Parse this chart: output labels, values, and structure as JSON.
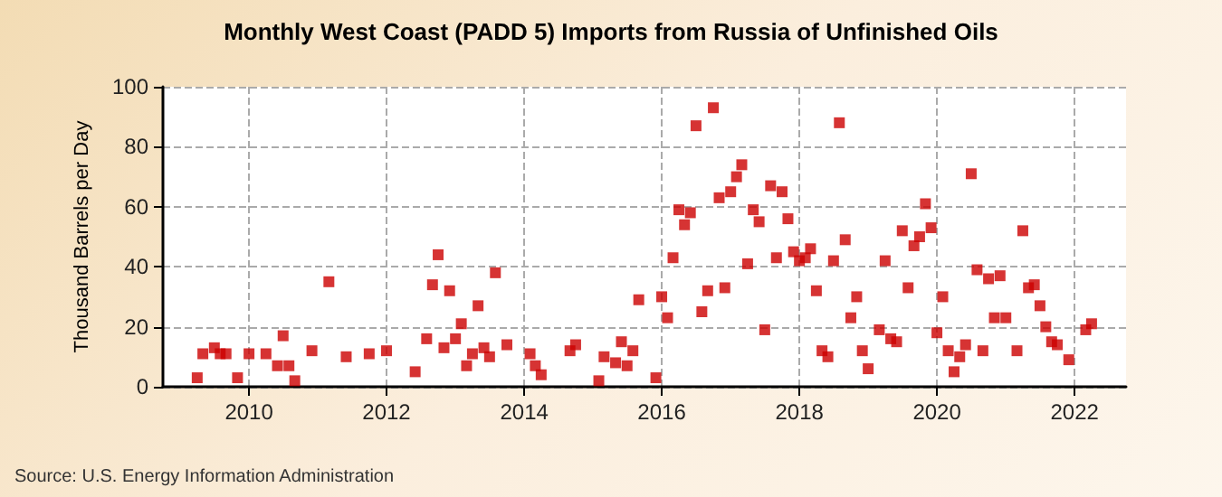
{
  "chart_data": {
    "type": "scatter",
    "title": "Monthly West Coast (PADD 5) Imports from Russia of Unfinished Oils",
    "ylabel": "Thousand Barrels per Day",
    "annotations": [
      "Source: U.S. Energy Information Administration"
    ],
    "x": [
      "2009-04",
      "2009-05",
      "2009-07",
      "2009-08",
      "2009-09",
      "2009-11",
      "2010-01",
      "2010-04",
      "2010-06",
      "2010-07",
      "2010-08",
      "2010-09",
      "2010-12",
      "2011-03",
      "2011-06",
      "2011-10",
      "2012-01",
      "2012-06",
      "2012-08",
      "2012-09",
      "2012-10",
      "2012-11",
      "2012-12",
      "2013-01",
      "2013-02",
      "2013-03",
      "2013-04",
      "2013-05",
      "2013-06",
      "2013-07",
      "2013-08",
      "2013-10",
      "2014-02",
      "2014-03",
      "2014-04",
      "2014-09",
      "2014-10",
      "2015-02",
      "2015-03",
      "2015-05",
      "2015-06",
      "2015-07",
      "2015-08",
      "2015-09",
      "2015-12",
      "2016-01",
      "2016-02",
      "2016-03",
      "2016-04",
      "2016-05",
      "2016-06",
      "2016-07",
      "2016-08",
      "2016-09",
      "2016-10",
      "2016-11",
      "2016-12",
      "2017-01",
      "2017-02",
      "2017-03",
      "2017-04",
      "2017-05",
      "2017-06",
      "2017-07",
      "2017-08",
      "2017-09",
      "2017-10",
      "2017-11",
      "2017-12",
      "2018-01",
      "2018-02",
      "2018-03",
      "2018-04",
      "2018-05",
      "2018-06",
      "2018-07",
      "2018-08",
      "2018-09",
      "2018-10",
      "2018-11",
      "2018-12",
      "2019-01",
      "2019-03",
      "2019-04",
      "2019-05",
      "2019-06",
      "2019-07",
      "2019-08",
      "2019-09",
      "2019-10",
      "2019-11",
      "2019-12",
      "2020-01",
      "2020-02",
      "2020-03",
      "2020-04",
      "2020-05",
      "2020-06",
      "2020-07",
      "2020-08",
      "2020-09",
      "2020-10",
      "2020-11",
      "2020-12",
      "2021-01",
      "2021-03",
      "2021-04",
      "2021-05",
      "2021-06",
      "2021-07",
      "2021-08",
      "2021-09",
      "2021-10",
      "2021-12",
      "2022-03",
      "2022-04"
    ],
    "series": [
      {
        "color": "#cc0000",
        "values": [
          3,
          11,
          13,
          11,
          11,
          3,
          11,
          11,
          7,
          17,
          7,
          2,
          12,
          35,
          10,
          11,
          12,
          5,
          16,
          34,
          44,
          13,
          32,
          16,
          21,
          7,
          11,
          27,
          13,
          10,
          38,
          14,
          11,
          7,
          4,
          12,
          14,
          2,
          10,
          8,
          15,
          7,
          12,
          29,
          3,
          30,
          23,
          43,
          59,
          54,
          58,
          87,
          25,
          32,
          93,
          63,
          33,
          65,
          70,
          74,
          41,
          59,
          55,
          19,
          67,
          43,
          65,
          56,
          45,
          42,
          43,
          46,
          32,
          12,
          10,
          42,
          88,
          49,
          23,
          30,
          12,
          6,
          19,
          42,
          16,
          15,
          52,
          33,
          47,
          50,
          61,
          53,
          18,
          30,
          12,
          5,
          10,
          14,
          71,
          39,
          12,
          36,
          23,
          37,
          23,
          12,
          52,
          33,
          34,
          27,
          20,
          15,
          14,
          9,
          19,
          21
        ]
      }
    ],
    "xlim": [
      "2008-10",
      "2022-10"
    ],
    "xticks": [
      "2010",
      "2012",
      "2014",
      "2016",
      "2018",
      "2020",
      "2022"
    ],
    "ylim": [
      0,
      100
    ],
    "yticks": [
      0,
      20,
      40,
      60,
      80,
      100
    ],
    "grid": true,
    "marker": "square"
  }
}
